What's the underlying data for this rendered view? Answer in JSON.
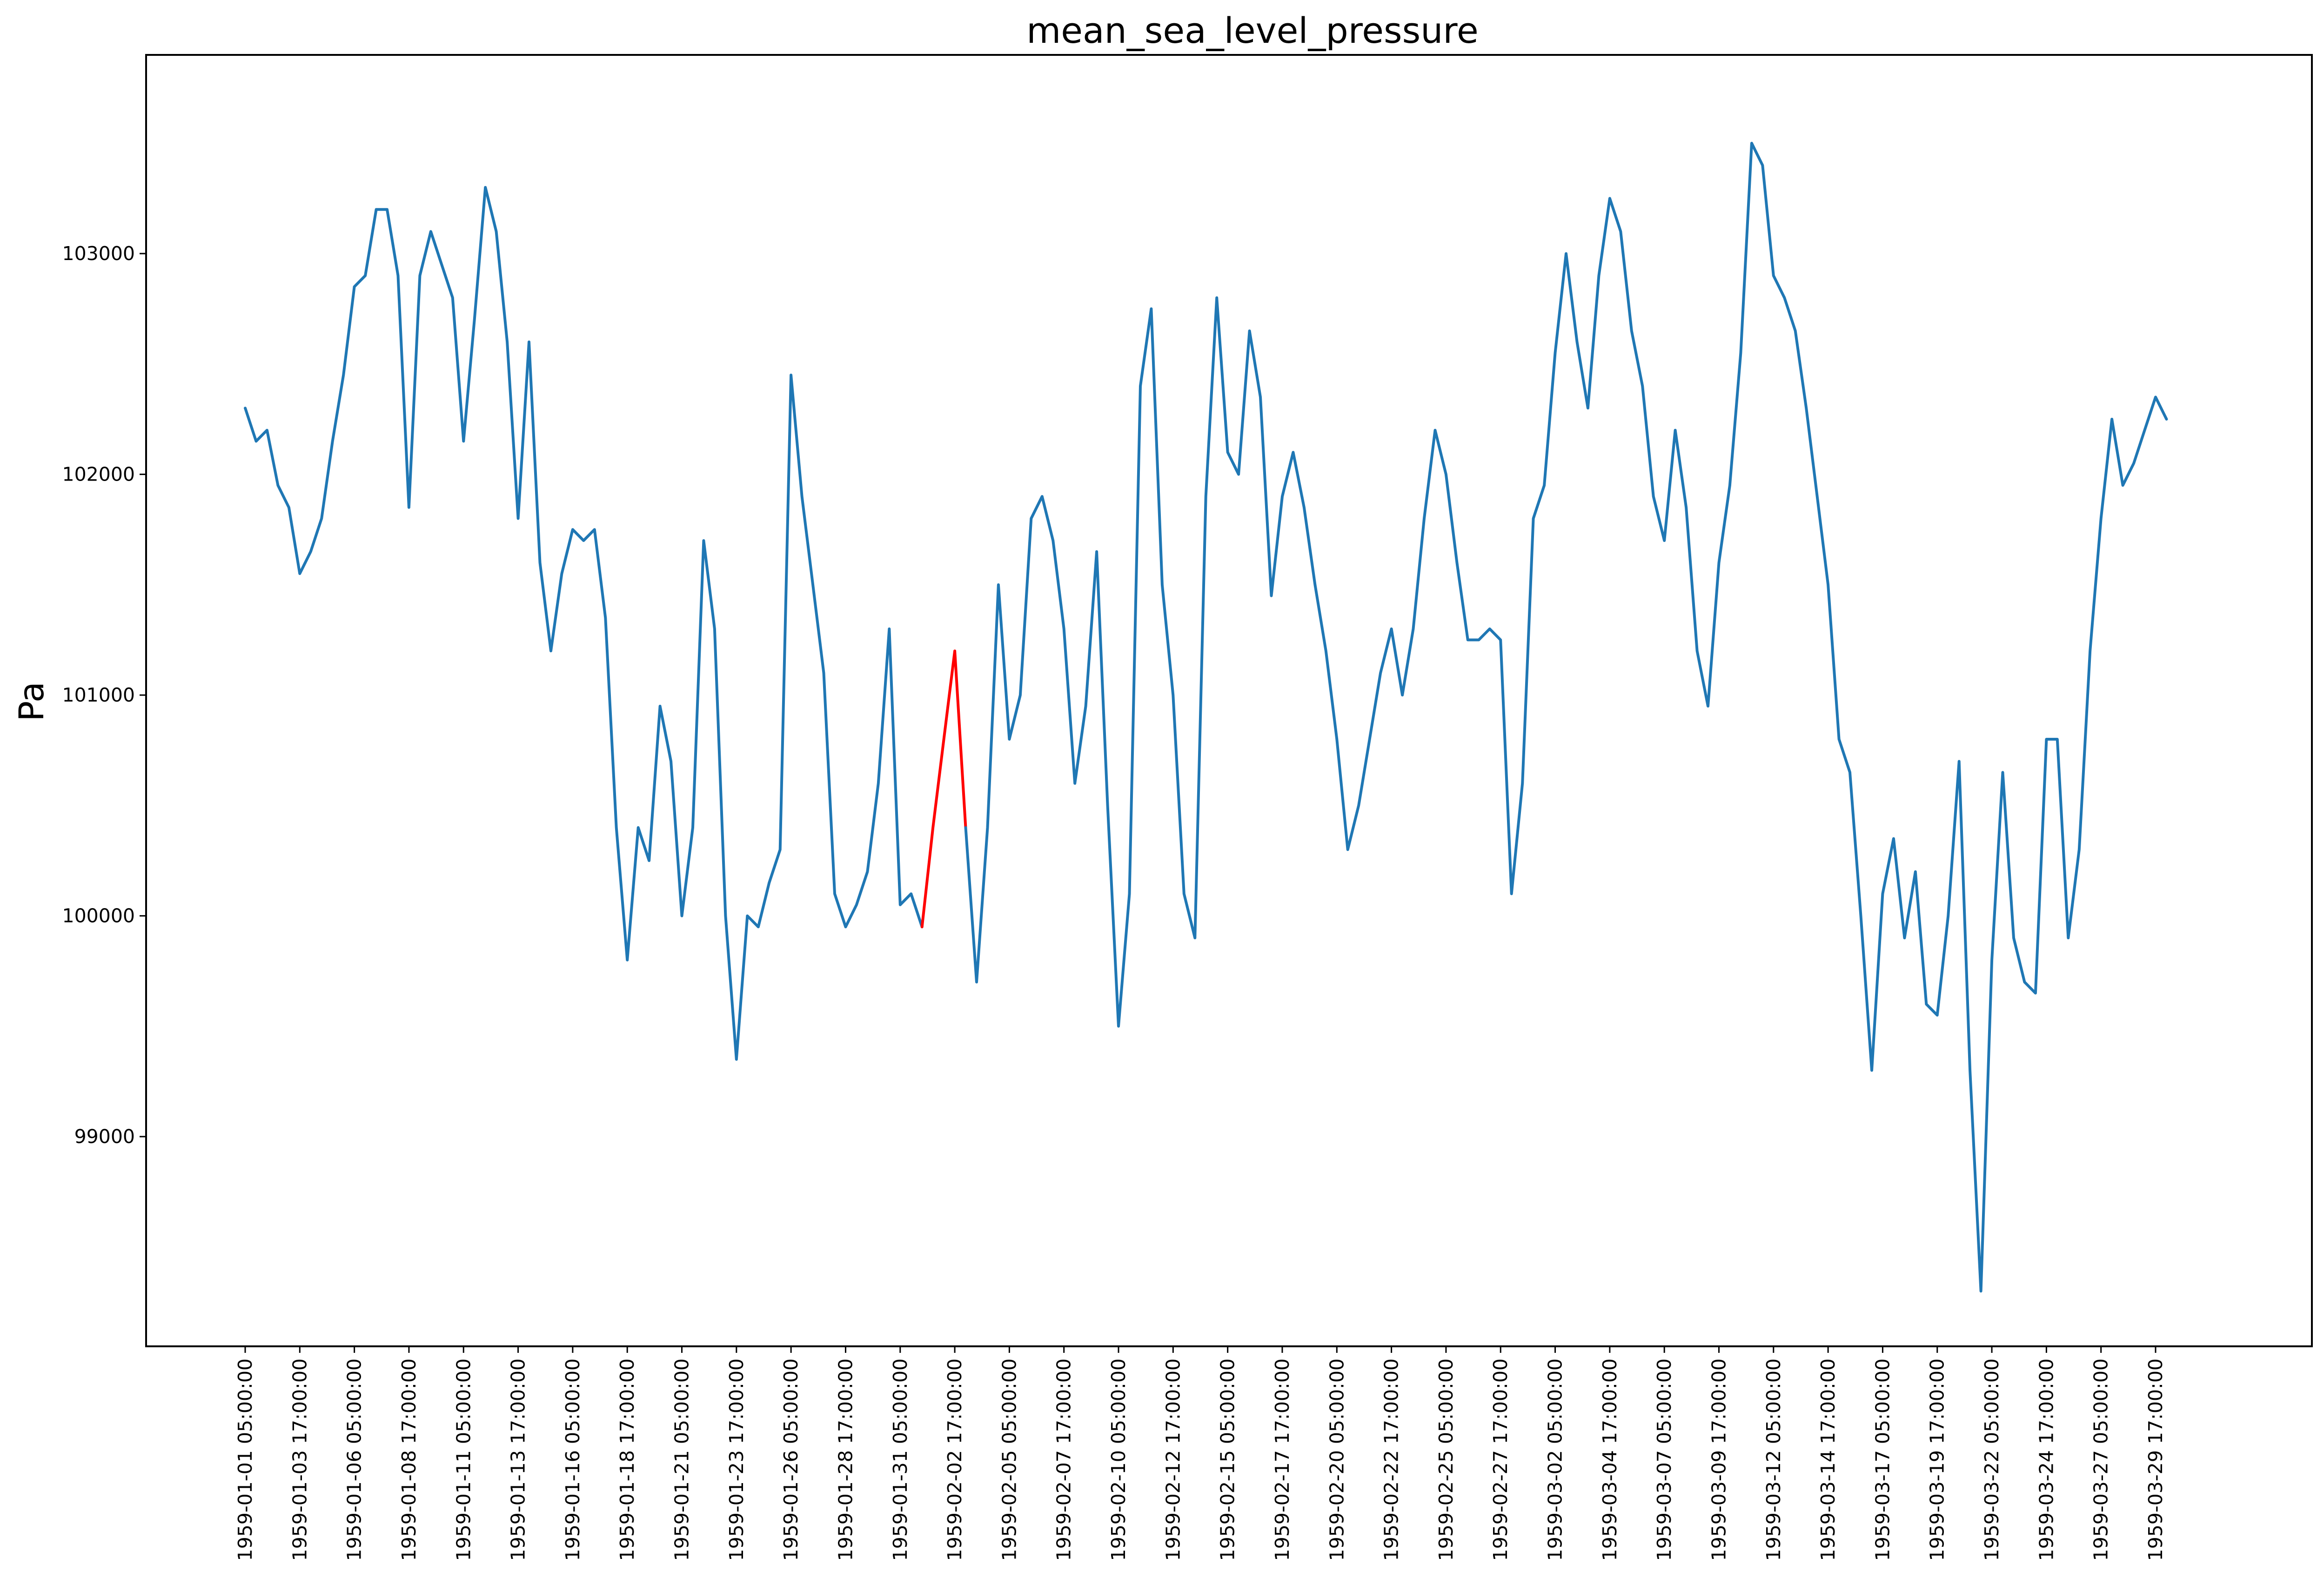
{
  "chart_data": {
    "type": "line",
    "title": "mean_sea_level_pressure",
    "xlabel": "",
    "ylabel": "Pa",
    "ylim": [
      98050,
      103900
    ],
    "grid": false,
    "yticks": [
      99000,
      100000,
      101000,
      102000,
      103000
    ],
    "xtick_labels": [
      "1959-01-01 05:00:00",
      "1959-01-03 17:00:00",
      "1959-01-06 05:00:00",
      "1959-01-08 17:00:00",
      "1959-01-11 05:00:00",
      "1959-01-13 17:00:00",
      "1959-01-16 05:00:00",
      "1959-01-18 17:00:00",
      "1959-01-21 05:00:00",
      "1959-01-23 17:00:00",
      "1959-01-26 05:00:00",
      "1959-01-28 17:00:00",
      "1959-01-31 05:00:00",
      "1959-02-02 17:00:00",
      "1959-02-05 05:00:00",
      "1959-02-07 17:00:00",
      "1959-02-10 05:00:00",
      "1959-02-12 17:00:00",
      "1959-02-15 05:00:00",
      "1959-02-17 17:00:00",
      "1959-02-20 05:00:00",
      "1959-02-22 17:00:00",
      "1959-02-25 05:00:00",
      "1959-02-27 17:00:00",
      "1959-03-02 05:00:00",
      "1959-03-04 17:00:00",
      "1959-03-07 05:00:00",
      "1959-03-09 17:00:00",
      "1959-03-12 05:00:00",
      "1959-03-14 17:00:00",
      "1959-03-17 05:00:00",
      "1959-03-19 17:00:00",
      "1959-03-22 05:00:00",
      "1959-03-24 17:00:00",
      "1959-03-27 05:00:00",
      "1959-03-29 17:00:00"
    ],
    "series": [
      {
        "color": "#1f77b4",
        "points": [
          [
            "1959-01-01 05:00:00",
            102300
          ],
          [
            "1959-01-01 17:00:00",
            102150
          ],
          [
            "1959-01-02 05:00:00",
            102200
          ],
          [
            "1959-01-02 17:00:00",
            101950
          ],
          [
            "1959-01-03 05:00:00",
            101850
          ],
          [
            "1959-01-03 17:00:00",
            101550
          ],
          [
            "1959-01-04 05:00:00",
            101650
          ],
          [
            "1959-01-04 17:00:00",
            101800
          ],
          [
            "1959-01-05 05:00:00",
            102150
          ],
          [
            "1959-01-05 17:00:00",
            102450
          ],
          [
            "1959-01-06 05:00:00",
            102850
          ],
          [
            "1959-01-06 17:00:00",
            102900
          ],
          [
            "1959-01-07 05:00:00",
            103200
          ],
          [
            "1959-01-07 17:00:00",
            103200
          ],
          [
            "1959-01-08 05:00:00",
            102900
          ],
          [
            "1959-01-08 17:00:00",
            101850
          ],
          [
            "1959-01-09 05:00:00",
            102900
          ],
          [
            "1959-01-09 17:00:00",
            103100
          ],
          [
            "1959-01-10 05:00:00",
            102950
          ],
          [
            "1959-01-10 17:00:00",
            102800
          ],
          [
            "1959-01-11 05:00:00",
            102150
          ],
          [
            "1959-01-11 17:00:00",
            102700
          ],
          [
            "1959-01-12 05:00:00",
            103300
          ],
          [
            "1959-01-12 17:00:00",
            103100
          ],
          [
            "1959-01-13 05:00:00",
            102600
          ],
          [
            "1959-01-13 17:00:00",
            101800
          ],
          [
            "1959-01-14 05:00:00",
            102600
          ],
          [
            "1959-01-14 17:00:00",
            101600
          ],
          [
            "1959-01-15 05:00:00",
            101200
          ],
          [
            "1959-01-15 17:00:00",
            101550
          ],
          [
            "1959-01-16 05:00:00",
            101750
          ],
          [
            "1959-01-16 17:00:00",
            101700
          ],
          [
            "1959-01-17 05:00:00",
            101750
          ],
          [
            "1959-01-17 17:00:00",
            101350
          ],
          [
            "1959-01-18 05:00:00",
            100400
          ],
          [
            "1959-01-18 17:00:00",
            99800
          ],
          [
            "1959-01-19 05:00:00",
            100400
          ],
          [
            "1959-01-19 17:00:00",
            100250
          ],
          [
            "1959-01-20 05:00:00",
            100950
          ],
          [
            "1959-01-20 17:00:00",
            100700
          ],
          [
            "1959-01-21 05:00:00",
            100000
          ],
          [
            "1959-01-21 17:00:00",
            100400
          ],
          [
            "1959-01-22 05:00:00",
            101700
          ],
          [
            "1959-01-22 17:00:00",
            101300
          ],
          [
            "1959-01-23 05:00:00",
            100000
          ],
          [
            "1959-01-23 17:00:00",
            99350
          ],
          [
            "1959-01-24 05:00:00",
            100000
          ],
          [
            "1959-01-24 17:00:00",
            99950
          ],
          [
            "1959-01-25 05:00:00",
            100150
          ],
          [
            "1959-01-25 17:00:00",
            100300
          ],
          [
            "1959-01-26 05:00:00",
            102450
          ],
          [
            "1959-01-26 17:00:00",
            101900
          ],
          [
            "1959-01-27 05:00:00",
            101500
          ],
          [
            "1959-01-27 17:00:00",
            101100
          ],
          [
            "1959-01-28 05:00:00",
            100100
          ],
          [
            "1959-01-28 17:00:00",
            99950
          ],
          [
            "1959-01-29 05:00:00",
            100050
          ],
          [
            "1959-01-29 17:00:00",
            100200
          ],
          [
            "1959-01-30 05:00:00",
            100600
          ],
          [
            "1959-01-30 17:00:00",
            101300
          ],
          [
            "1959-01-31 05:00:00",
            100050
          ],
          [
            "1959-01-31 17:00:00",
            100100
          ],
          [
            "1959-02-01 05:00:00",
            99950
          ]
        ]
      },
      {
        "color": "#ff0000",
        "points": [
          [
            "1959-02-01 05:00:00",
            99950
          ],
          [
            "1959-02-01 17:00:00",
            100400
          ],
          [
            "1959-02-02 05:00:00",
            100800
          ],
          [
            "1959-02-02 17:00:00",
            101200
          ],
          [
            "1959-02-03 05:00:00",
            100400
          ]
        ]
      },
      {
        "color": "#1f77b4",
        "points": [
          [
            "1959-02-03 05:00:00",
            100400
          ],
          [
            "1959-02-03 17:00:00",
            99700
          ],
          [
            "1959-02-04 05:00:00",
            100400
          ],
          [
            "1959-02-04 17:00:00",
            101500
          ],
          [
            "1959-02-05 05:00:00",
            100800
          ],
          [
            "1959-02-05 17:00:00",
            101000
          ],
          [
            "1959-02-06 05:00:00",
            101800
          ],
          [
            "1959-02-06 17:00:00",
            101900
          ],
          [
            "1959-02-07 05:00:00",
            101700
          ],
          [
            "1959-02-07 17:00:00",
            101300
          ],
          [
            "1959-02-08 05:00:00",
            100600
          ],
          [
            "1959-02-08 17:00:00",
            100950
          ],
          [
            "1959-02-09 05:00:00",
            101650
          ],
          [
            "1959-02-09 17:00:00",
            100500
          ],
          [
            "1959-02-10 05:00:00",
            99500
          ],
          [
            "1959-02-10 17:00:00",
            100100
          ],
          [
            "1959-02-11 05:00:00",
            102400
          ],
          [
            "1959-02-11 17:00:00",
            102750
          ],
          [
            "1959-02-12 05:00:00",
            101500
          ],
          [
            "1959-02-12 17:00:00",
            101000
          ],
          [
            "1959-02-13 05:00:00",
            100100
          ],
          [
            "1959-02-13 17:00:00",
            99900
          ],
          [
            "1959-02-14 05:00:00",
            101900
          ],
          [
            "1959-02-14 17:00:00",
            102800
          ],
          [
            "1959-02-15 05:00:00",
            102100
          ],
          [
            "1959-02-15 17:00:00",
            102000
          ],
          [
            "1959-02-16 05:00:00",
            102650
          ],
          [
            "1959-02-16 17:00:00",
            102350
          ],
          [
            "1959-02-17 05:00:00",
            101450
          ],
          [
            "1959-02-17 17:00:00",
            101900
          ],
          [
            "1959-02-18 05:00:00",
            102100
          ],
          [
            "1959-02-18 17:00:00",
            101850
          ],
          [
            "1959-02-19 05:00:00",
            101500
          ],
          [
            "1959-02-19 17:00:00",
            101200
          ],
          [
            "1959-02-20 05:00:00",
            100800
          ],
          [
            "1959-02-20 17:00:00",
            100300
          ],
          [
            "1959-02-21 05:00:00",
            100500
          ],
          [
            "1959-02-21 17:00:00",
            100800
          ],
          [
            "1959-02-22 05:00:00",
            101100
          ],
          [
            "1959-02-22 17:00:00",
            101300
          ],
          [
            "1959-02-23 05:00:00",
            101000
          ],
          [
            "1959-02-23 17:00:00",
            101300
          ],
          [
            "1959-02-24 05:00:00",
            101800
          ],
          [
            "1959-02-24 17:00:00",
            102200
          ],
          [
            "1959-02-25 05:00:00",
            102000
          ],
          [
            "1959-02-25 17:00:00",
            101600
          ],
          [
            "1959-02-26 05:00:00",
            101250
          ],
          [
            "1959-02-26 17:00:00",
            101250
          ],
          [
            "1959-02-27 05:00:00",
            101300
          ],
          [
            "1959-02-27 17:00:00",
            101250
          ],
          [
            "1959-02-28 05:00:00",
            100100
          ],
          [
            "1959-02-28 17:00:00",
            100600
          ],
          [
            "1959-03-01 05:00:00",
            101800
          ],
          [
            "1959-03-01 17:00:00",
            101950
          ],
          [
            "1959-03-02 05:00:00",
            102550
          ],
          [
            "1959-03-02 17:00:00",
            103000
          ],
          [
            "1959-03-03 05:00:00",
            102600
          ],
          [
            "1959-03-03 17:00:00",
            102300
          ],
          [
            "1959-03-04 05:00:00",
            102900
          ],
          [
            "1959-03-04 17:00:00",
            103250
          ],
          [
            "1959-03-05 05:00:00",
            103100
          ],
          [
            "1959-03-05 17:00:00",
            102650
          ],
          [
            "1959-03-06 05:00:00",
            102400
          ],
          [
            "1959-03-06 17:00:00",
            101900
          ],
          [
            "1959-03-07 05:00:00",
            101700
          ],
          [
            "1959-03-07 17:00:00",
            102200
          ],
          [
            "1959-03-08 05:00:00",
            101850
          ],
          [
            "1959-03-08 17:00:00",
            101200
          ],
          [
            "1959-03-09 05:00:00",
            100950
          ],
          [
            "1959-03-09 17:00:00",
            101600
          ],
          [
            "1959-03-10 05:00:00",
            101950
          ],
          [
            "1959-03-10 17:00:00",
            102550
          ],
          [
            "1959-03-11 05:00:00",
            103500
          ],
          [
            "1959-03-11 17:00:00",
            103400
          ],
          [
            "1959-03-12 05:00:00",
            102900
          ],
          [
            "1959-03-12 17:00:00",
            102800
          ],
          [
            "1959-03-13 05:00:00",
            102650
          ],
          [
            "1959-03-13 17:00:00",
            102300
          ],
          [
            "1959-03-14 05:00:00",
            101900
          ],
          [
            "1959-03-14 17:00:00",
            101500
          ],
          [
            "1959-03-15 05:00:00",
            100800
          ],
          [
            "1959-03-15 17:00:00",
            100650
          ],
          [
            "1959-03-16 05:00:00",
            100000
          ],
          [
            "1959-03-16 17:00:00",
            99300
          ],
          [
            "1959-03-17 05:00:00",
            100100
          ],
          [
            "1959-03-17 17:00:00",
            100350
          ],
          [
            "1959-03-18 05:00:00",
            99900
          ],
          [
            "1959-03-18 17:00:00",
            100200
          ],
          [
            "1959-03-19 05:00:00",
            99600
          ],
          [
            "1959-03-19 17:00:00",
            99550
          ],
          [
            "1959-03-20 05:00:00",
            100000
          ],
          [
            "1959-03-20 17:00:00",
            100700
          ],
          [
            "1959-03-21 05:00:00",
            99300
          ],
          [
            "1959-03-21 17:00:00",
            98300
          ],
          [
            "1959-03-22 05:00:00",
            99800
          ],
          [
            "1959-03-22 17:00:00",
            100650
          ],
          [
            "1959-03-23 05:00:00",
            99900
          ],
          [
            "1959-03-23 17:00:00",
            99700
          ],
          [
            "1959-03-24 05:00:00",
            99650
          ],
          [
            "1959-03-24 17:00:00",
            100800
          ],
          [
            "1959-03-25 05:00:00",
            100800
          ],
          [
            "1959-03-25 17:00:00",
            99900
          ],
          [
            "1959-03-26 05:00:00",
            100300
          ],
          [
            "1959-03-26 17:00:00",
            101200
          ],
          [
            "1959-03-27 05:00:00",
            101800
          ],
          [
            "1959-03-27 17:00:00",
            102250
          ],
          [
            "1959-03-28 05:00:00",
            101950
          ],
          [
            "1959-03-28 17:00:00",
            102050
          ],
          [
            "1959-03-29 05:00:00",
            102200
          ],
          [
            "1959-03-29 17:00:00",
            102350
          ],
          [
            "1959-03-30 05:00:00",
            102250
          ]
        ]
      }
    ]
  }
}
